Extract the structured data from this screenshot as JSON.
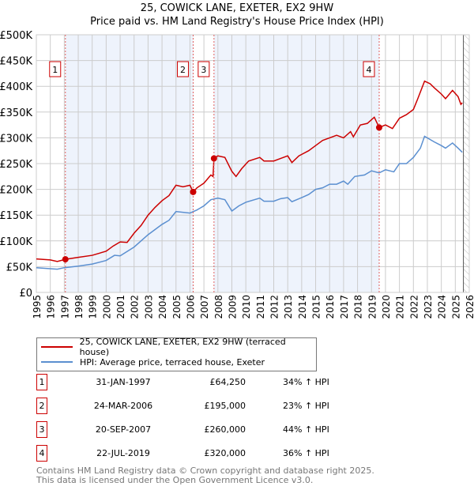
{
  "chart_data": {
    "type": "line",
    "title": "25, COWICK LANE, EXETER, EX2 9HW",
    "subtitle": "Price paid vs. HM Land Registry's House Price Index (HPI)",
    "xlim": [
      1995,
      2026
    ],
    "ylim": [
      0,
      500000
    ],
    "yticks": [
      {
        "v": 0,
        "label": "£0"
      },
      {
        "v": 50000,
        "label": "£50K"
      },
      {
        "v": 100000,
        "label": "£100K"
      },
      {
        "v": 150000,
        "label": "£150K"
      },
      {
        "v": 200000,
        "label": "£200K"
      },
      {
        "v": 250000,
        "label": "£250K"
      },
      {
        "v": 300000,
        "label": "£300K"
      },
      {
        "v": 350000,
        "label": "£350K"
      },
      {
        "v": 400000,
        "label": "£400K"
      },
      {
        "v": 450000,
        "label": "£450K"
      },
      {
        "v": 500000,
        "label": "£500K"
      }
    ],
    "xticks": [
      "1995",
      "1996",
      "1997",
      "1998",
      "1999",
      "2000",
      "2001",
      "2002",
      "2003",
      "2004",
      "2005",
      "2006",
      "2007",
      "2008",
      "2009",
      "2010",
      "2011",
      "2012",
      "2013",
      "2014",
      "2015",
      "2016",
      "2017",
      "2018",
      "2019",
      "2020",
      "2021",
      "2022",
      "2023",
      "2024",
      "2025",
      "2026"
    ],
    "shaded_ranges": [
      [
        1997.08,
        2006.23
      ],
      [
        2007.72,
        2019.55
      ]
    ],
    "hatched_from": 2025.58,
    "series": [
      {
        "name": "25, COWICK LANE, EXETER, EX2 9HW (terraced house)",
        "color": "#cc0000",
        "x": [
          1995,
          1996,
          1996.5,
          1997.08,
          1998,
          1999,
          2000,
          2000.5,
          2001,
          2001.5,
          2002,
          2002.5,
          2003,
          2003.5,
          2004,
          2004.5,
          2005,
          2005.5,
          2006,
          2006.23,
          2006.5,
          2007,
          2007.5,
          2007.65,
          2007.72,
          2008,
          2008.5,
          2009,
          2009.3,
          2009.7,
          2010.2,
          2011,
          2011.3,
          2012,
          2012.5,
          2013,
          2013.3,
          2013.8,
          2014.5,
          2015,
          2015.5,
          2016,
          2016.5,
          2017,
          2017.5,
          2017.7,
          2018.2,
          2018.7,
          2019.2,
          2019.55,
          2020,
          2020.5,
          2021,
          2021.5,
          2022,
          2022.3,
          2022.8,
          2023.2,
          2023.5,
          2024,
          2024.3,
          2024.8,
          2025.2,
          2025.4,
          2025.5
        ],
        "y": [
          65000,
          63000,
          60000,
          64250,
          68000,
          72000,
          80000,
          90000,
          98000,
          97000,
          115000,
          130000,
          150000,
          165000,
          178000,
          188000,
          208000,
          205000,
          208000,
          195000,
          203000,
          212000,
          228000,
          225000,
          260000,
          265000,
          262000,
          235000,
          225000,
          240000,
          255000,
          262000,
          255000,
          255000,
          260000,
          265000,
          252000,
          265000,
          275000,
          285000,
          295000,
          300000,
          305000,
          300000,
          312000,
          302000,
          325000,
          328000,
          340000,
          320000,
          325000,
          318000,
          338000,
          345000,
          355000,
          375000,
          410000,
          405000,
          397000,
          385000,
          376000,
          392000,
          380000,
          365000,
          368000
        ]
      },
      {
        "name": "HPI: Average price, terraced house, Exeter",
        "color": "#5b8fd0",
        "x": [
          1995,
          1996.5,
          1997,
          1998,
          1999,
          2000,
          2000.6,
          2001,
          2002,
          2003,
          2004,
          2004.5,
          2005,
          2006,
          2006.5,
          2007,
          2007.5,
          2008,
          2008.5,
          2009,
          2009.5,
          2010,
          2011,
          2011.3,
          2012,
          2012.5,
          2013,
          2013.3,
          2014,
          2014.5,
          2015,
          2015.5,
          2016,
          2016.5,
          2017,
          2017.3,
          2017.8,
          2018.5,
          2019,
          2019.55,
          2020,
          2020.6,
          2021,
          2021.5,
          2022,
          2022.5,
          2022.8,
          2023.5,
          2024,
          2024.3,
          2024.8,
          2025.2,
          2025.5
        ],
        "y": [
          48000,
          45000,
          48000,
          51000,
          55000,
          62000,
          72000,
          71000,
          88000,
          112000,
          132000,
          140000,
          157000,
          154000,
          160000,
          168000,
          180000,
          183000,
          180000,
          158000,
          168000,
          175000,
          183000,
          177000,
          177000,
          182000,
          184000,
          176000,
          184000,
          190000,
          200000,
          203000,
          210000,
          210000,
          216000,
          210000,
          225000,
          228000,
          236000,
          232000,
          238000,
          234000,
          250000,
          250000,
          262000,
          280000,
          303000,
          292000,
          285000,
          280000,
          290000,
          280000,
          272000
        ]
      }
    ],
    "sales": [
      {
        "num": "1",
        "x": 1997.08,
        "y": 64250,
        "date": "31-JAN-1997",
        "price": "£64,250",
        "hpi": "34% ↑ HPI"
      },
      {
        "num": "2",
        "x": 2006.23,
        "y": 195000,
        "date": "24-MAR-2006",
        "price": "£195,000",
        "hpi": "23% ↑ HPI"
      },
      {
        "num": "3",
        "x": 2007.72,
        "y": 260000,
        "date": "20-SEP-2007",
        "price": "£260,000",
        "hpi": "44% ↑ HPI"
      },
      {
        "num": "4",
        "x": 2019.55,
        "y": 320000,
        "date": "22-JUL-2019",
        "price": "£320,000",
        "hpi": "36% ↑ HPI"
      }
    ]
  },
  "footer": {
    "line1": "Contains HM Land Registry data © Crown copyright and database right 2025.",
    "line2": "This data is licensed under the Open Government Licence v3.0."
  }
}
